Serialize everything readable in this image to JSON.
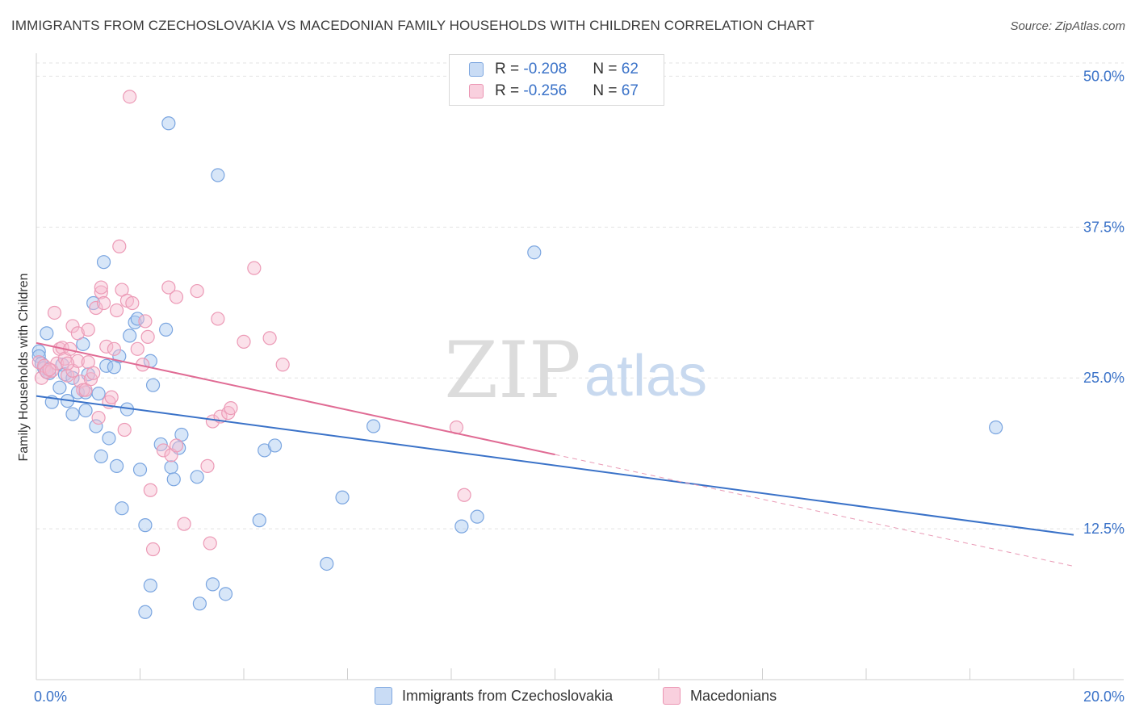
{
  "title": "IMMIGRANTS FROM CZECHOSLOVAKIA VS MACEDONIAN FAMILY HOUSEHOLDS WITH CHILDREN CORRELATION CHART",
  "source": "Source: ZipAtlas.com",
  "watermark": {
    "zip": "ZIP",
    "atlas": "atlas"
  },
  "legend": {
    "r_label": "R = ",
    "n_label": "N = ",
    "rows": [
      {
        "r": "-0.208",
        "n": "62",
        "color": "#a7c7f0",
        "border": "#6f9ee0"
      },
      {
        "r": "-0.256",
        "n": "67",
        "color": "#f6bcd0",
        "border": "#e98aab"
      }
    ]
  },
  "colors": {
    "blue": "#3a72c8",
    "pink": "#e06b94",
    "blue_fill": "#a7c7f0",
    "pink_fill": "#f6bcd0"
  },
  "chart_data": {
    "type": "scatter",
    "title": "IMMIGRANTS FROM CZECHOSLOVAKIA VS MACEDONIAN FAMILY HOUSEHOLDS WITH CHILDREN CORRELATION CHART",
    "xlabel": "",
    "ylabel": "Family Households with Children",
    "xlim": [
      0,
      20
    ],
    "ylim": [
      0,
      51.5
    ],
    "x_tick_labels": [
      "0.0%",
      "20.0%"
    ],
    "y_ticks": [
      12.5,
      25.0,
      37.5,
      50.0
    ],
    "y_tick_labels": [
      "12.5%",
      "25.0%",
      "37.5%",
      "50.0%"
    ],
    "grid": true,
    "legend_position": "top-center",
    "series": [
      {
        "name": "Immigrants from Czechoslovakia",
        "color": "#6f9ee0",
        "r": -0.208,
        "n": 62,
        "trend": {
          "x": [
            0,
            20
          ],
          "y": [
            23.5,
            12.0
          ],
          "dashed_from": null
        },
        "points": [
          [
            0.05,
            27.2
          ],
          [
            0.05,
            26.8
          ],
          [
            0.1,
            26.2
          ],
          [
            0.15,
            25.8
          ],
          [
            0.2,
            28.7
          ],
          [
            0.25,
            25.4
          ],
          [
            0.3,
            23.0
          ],
          [
            0.45,
            24.2
          ],
          [
            0.5,
            26.1
          ],
          [
            0.55,
            25.3
          ],
          [
            0.6,
            23.1
          ],
          [
            0.7,
            25.0
          ],
          [
            0.7,
            22.0
          ],
          [
            0.8,
            23.8
          ],
          [
            0.9,
            27.8
          ],
          [
            0.95,
            23.8
          ],
          [
            0.95,
            22.3
          ],
          [
            1.0,
            25.3
          ],
          [
            1.1,
            31.2
          ],
          [
            1.15,
            21.0
          ],
          [
            1.2,
            23.7
          ],
          [
            1.25,
            18.5
          ],
          [
            1.3,
            34.6
          ],
          [
            1.35,
            26.0
          ],
          [
            1.4,
            20.0
          ],
          [
            1.5,
            25.9
          ],
          [
            1.55,
            17.7
          ],
          [
            1.6,
            26.8
          ],
          [
            1.65,
            14.2
          ],
          [
            1.75,
            22.4
          ],
          [
            1.8,
            28.5
          ],
          [
            1.9,
            29.6
          ],
          [
            1.95,
            29.9
          ],
          [
            2.0,
            17.4
          ],
          [
            2.1,
            12.8
          ],
          [
            2.2,
            26.4
          ],
          [
            2.2,
            7.8
          ],
          [
            2.25,
            24.4
          ],
          [
            2.4,
            19.5
          ],
          [
            2.5,
            29.0
          ],
          [
            2.55,
            46.1
          ],
          [
            2.6,
            17.6
          ],
          [
            2.65,
            16.6
          ],
          [
            2.75,
            19.2
          ],
          [
            2.8,
            20.3
          ],
          [
            2.1,
            5.6
          ],
          [
            3.1,
            16.8
          ],
          [
            3.15,
            6.3
          ],
          [
            3.4,
            7.9
          ],
          [
            3.5,
            41.8
          ],
          [
            3.65,
            7.1
          ],
          [
            4.3,
            13.2
          ],
          [
            4.4,
            19.0
          ],
          [
            4.6,
            19.4
          ],
          [
            5.6,
            9.6
          ],
          [
            5.9,
            15.1
          ],
          [
            6.5,
            21.0
          ],
          [
            8.2,
            12.7
          ],
          [
            8.5,
            13.5
          ],
          [
            9.6,
            35.4
          ],
          [
            18.5,
            20.9
          ],
          [
            0.2,
            25.5
          ]
        ]
      },
      {
        "name": "Macedonians",
        "color": "#e98aab",
        "r": -0.256,
        "n": 67,
        "trend": {
          "x": [
            0,
            20
          ],
          "y": [
            27.9,
            9.4
          ],
          "dashed_from": 10
        },
        "points": [
          [
            0.05,
            26.3
          ],
          [
            0.1,
            25.0
          ],
          [
            0.15,
            26.0
          ],
          [
            0.2,
            25.5
          ],
          [
            0.3,
            25.6
          ],
          [
            0.35,
            30.4
          ],
          [
            0.4,
            26.2
          ],
          [
            0.45,
            27.4
          ],
          [
            0.5,
            27.5
          ],
          [
            0.55,
            26.6
          ],
          [
            0.6,
            25.2
          ],
          [
            0.65,
            27.4
          ],
          [
            0.7,
            29.3
          ],
          [
            0.7,
            25.6
          ],
          [
            0.8,
            26.4
          ],
          [
            0.8,
            28.7
          ],
          [
            0.85,
            24.7
          ],
          [
            0.9,
            24.0
          ],
          [
            0.95,
            24.0
          ],
          [
            1.0,
            29.0
          ],
          [
            1.0,
            26.3
          ],
          [
            1.05,
            24.9
          ],
          [
            1.1,
            25.4
          ],
          [
            1.15,
            30.8
          ],
          [
            1.2,
            21.7
          ],
          [
            1.25,
            32.1
          ],
          [
            1.25,
            32.5
          ],
          [
            1.3,
            31.2
          ],
          [
            1.35,
            27.6
          ],
          [
            1.4,
            23.0
          ],
          [
            1.45,
            23.4
          ],
          [
            1.5,
            27.4
          ],
          [
            1.55,
            30.6
          ],
          [
            1.6,
            35.9
          ],
          [
            1.65,
            32.3
          ],
          [
            1.7,
            20.7
          ],
          [
            1.75,
            31.4
          ],
          [
            1.8,
            48.3
          ],
          [
            1.85,
            31.2
          ],
          [
            1.95,
            27.4
          ],
          [
            2.05,
            26.1
          ],
          [
            2.1,
            29.7
          ],
          [
            2.15,
            28.4
          ],
          [
            2.2,
            15.7
          ],
          [
            2.25,
            10.8
          ],
          [
            2.45,
            19.0
          ],
          [
            2.55,
            32.5
          ],
          [
            2.6,
            18.6
          ],
          [
            2.7,
            31.7
          ],
          [
            2.7,
            19.4
          ],
          [
            2.85,
            12.9
          ],
          [
            3.1,
            32.2
          ],
          [
            3.3,
            17.7
          ],
          [
            3.35,
            11.3
          ],
          [
            3.4,
            21.4
          ],
          [
            3.5,
            29.9
          ],
          [
            3.55,
            21.8
          ],
          [
            3.7,
            22.1
          ],
          [
            3.75,
            22.5
          ],
          [
            4.0,
            28.0
          ],
          [
            4.2,
            34.1
          ],
          [
            4.5,
            28.3
          ],
          [
            4.75,
            26.1
          ],
          [
            8.1,
            20.9
          ],
          [
            8.25,
            15.3
          ],
          [
            0.25,
            25.7
          ],
          [
            0.6,
            26.2
          ]
        ]
      }
    ]
  },
  "axes": {
    "ylabel": "Family Households with Children",
    "x_left": "0.0%",
    "x_right": "20.0%",
    "y_ticks": [
      "50.0%",
      "37.5%",
      "25.0%",
      "12.5%"
    ]
  },
  "bottom_legend": [
    "Immigrants from Czechoslovakia",
    "Macedonians"
  ]
}
